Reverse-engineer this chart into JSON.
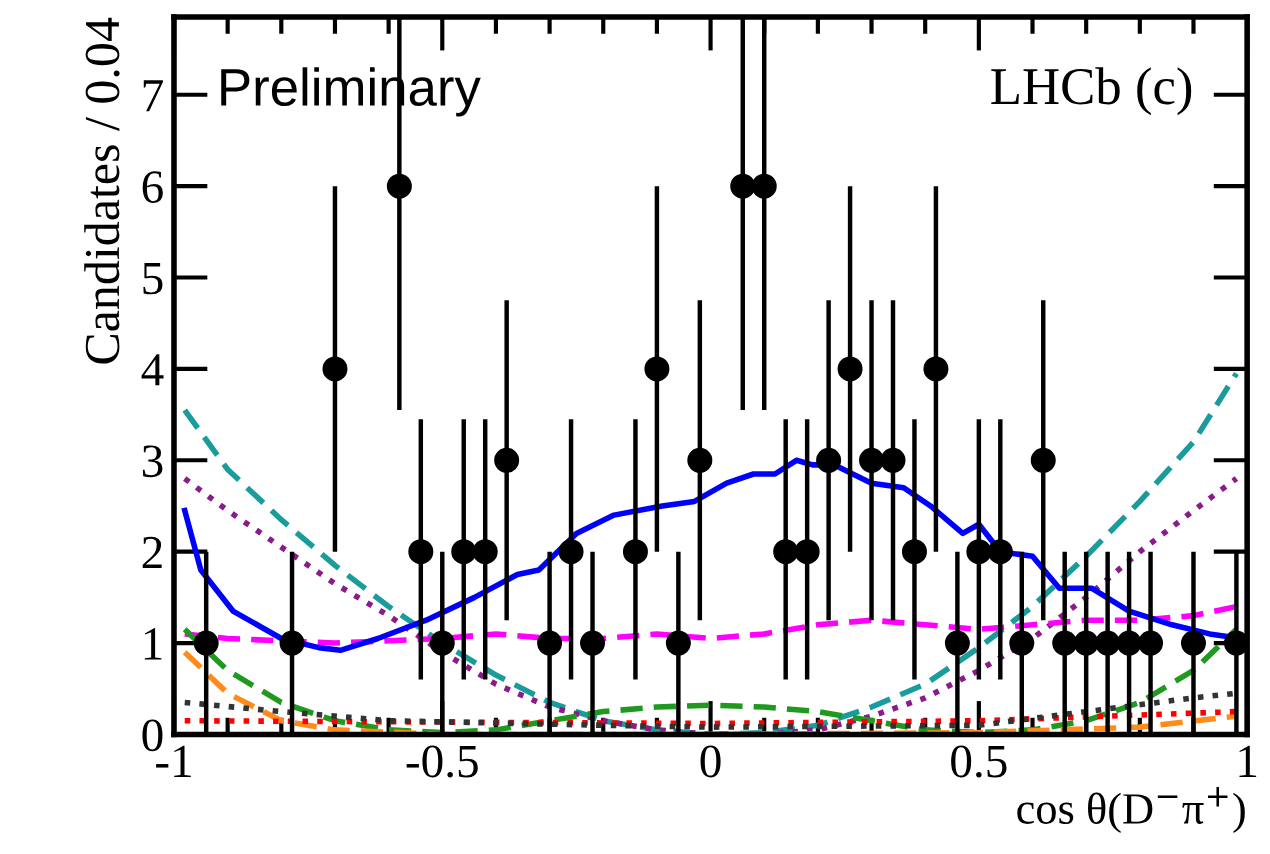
{
  "chart_data": {
    "type": "scatter",
    "xlabel": "cos θ(D$^{−}$π$^{+}$)",
    "ylabel": "Candidates / 0.04",
    "xlim": [
      -1,
      1
    ],
    "xticks": [
      -1,
      -0.5,
      0,
      0.5,
      1
    ],
    "ylim": [
      0,
      7.85
    ],
    "yticks": [
      0,
      1,
      2,
      3,
      4,
      5,
      6,
      7
    ],
    "grid": false,
    "legend": false,
    "annotations": [
      "Preliminary",
      "LHCb (c)"
    ],
    "series": [
      {
        "type": "line",
        "color": "#1a9c9c",
        "line_style": "dashed",
        "x": [
          -0.98,
          -0.9,
          -0.8,
          -0.7,
          -0.6,
          -0.5,
          -0.4,
          -0.3,
          -0.2,
          -0.1,
          0,
          0.1,
          0.2,
          0.3,
          0.4,
          0.5,
          0.6,
          0.7,
          0.8,
          0.9,
          0.98
        ],
        "values": [
          3.55,
          2.9,
          2.35,
          1.85,
          1.4,
          1.0,
          0.65,
          0.35,
          0.15,
          0.05,
          0.0,
          0.02,
          0.1,
          0.3,
          0.55,
          0.95,
          1.4,
          1.95,
          2.55,
          3.2,
          3.95
        ]
      },
      {
        "type": "line",
        "color": "#8b1a8b",
        "line_style": "dotted",
        "x": [
          -0.98,
          -0.9,
          -0.8,
          -0.7,
          -0.6,
          -0.5,
          -0.4,
          -0.3,
          -0.2,
          -0.1,
          0,
          0.1,
          0.2,
          0.3,
          0.4,
          0.5,
          0.6,
          0.7,
          0.8,
          0.9,
          0.98
        ],
        "values": [
          2.8,
          2.45,
          2.05,
          1.65,
          1.3,
          0.9,
          0.55,
          0.3,
          0.15,
          0.05,
          0,
          0,
          0.05,
          0.2,
          0.4,
          0.7,
          1.05,
          1.5,
          2.0,
          2.45,
          2.8
        ]
      },
      {
        "type": "line",
        "color": "#ff00ff",
        "line_style": "dashed",
        "x": [
          -0.98,
          -0.9,
          -0.7,
          -0.5,
          -0.4,
          -0.3,
          -0.2,
          -0.1,
          0,
          0.1,
          0.2,
          0.3,
          0.4,
          0.5,
          0.6,
          0.7,
          0.8,
          0.9,
          0.98
        ],
        "values": [
          1.1,
          1.05,
          1.0,
          1.05,
          1.1,
          1.05,
          1.05,
          1.1,
          1.05,
          1.1,
          1.2,
          1.25,
          1.2,
          1.15,
          1.2,
          1.25,
          1.25,
          1.3,
          1.4
        ]
      },
      {
        "type": "line",
        "color": "#1f9a1f",
        "line_style": "dashed",
        "x": [
          -0.98,
          -0.9,
          -0.8,
          -0.7,
          -0.6,
          -0.5,
          -0.4,
          -0.3,
          -0.2,
          -0.1,
          0,
          0.1,
          0.2,
          0.3,
          0.4,
          0.5,
          0.6,
          0.7,
          0.8,
          0.9,
          0.98
        ],
        "values": [
          1.15,
          0.7,
          0.35,
          0.15,
          0.05,
          0.02,
          0.05,
          0.15,
          0.25,
          0.3,
          0.32,
          0.3,
          0.25,
          0.15,
          0.05,
          0.02,
          0.05,
          0.15,
          0.35,
          0.7,
          1.15
        ]
      },
      {
        "type": "line",
        "color": "#ff8c1a",
        "line_style": "dashed",
        "x": [
          -0.98,
          -0.9,
          -0.8,
          -0.7,
          -0.5,
          0,
          0.5,
          0.8,
          0.98
        ],
        "values": [
          0.9,
          0.45,
          0.15,
          0.05,
          0.0,
          0,
          0.02,
          0.08,
          0.2
        ]
      },
      {
        "type": "line",
        "color": "#ff0000",
        "line_style": "dotted",
        "x": [
          -0.98,
          0,
          0.5,
          0.98
        ],
        "values": [
          0.15,
          0.12,
          0.15,
          0.25
        ]
      },
      {
        "type": "line",
        "color": "#333333",
        "line_style": "dotted",
        "x": [
          -0.98,
          -0.8,
          -0.6,
          -0.2,
          0,
          0.5,
          0.7,
          0.9,
          0.98
        ],
        "values": [
          0.35,
          0.25,
          0.15,
          0.1,
          0.08,
          0.1,
          0.25,
          0.4,
          0.45
        ]
      },
      {
        "type": "line",
        "color": "#0000ff",
        "line_style": "solid",
        "x": [
          -0.98,
          -0.95,
          -0.89,
          -0.8,
          -0.73,
          -0.69,
          -0.62,
          -0.53,
          -0.44,
          -0.36,
          -0.32,
          -0.25,
          -0.18,
          -0.09,
          -0.03,
          0.03,
          0.08,
          0.12,
          0.16,
          0.19,
          0.23,
          0.3,
          0.36,
          0.41,
          0.47,
          0.5,
          0.54,
          0.6,
          0.65,
          0.71,
          0.78,
          0.86,
          0.93,
          0.99
        ],
        "values": [
          2.45,
          1.8,
          1.35,
          1.05,
          0.95,
          0.92,
          1.05,
          1.25,
          1.5,
          1.75,
          1.8,
          2.2,
          2.4,
          2.5,
          2.55,
          2.75,
          2.85,
          2.85,
          3.0,
          2.95,
          2.95,
          2.75,
          2.7,
          2.5,
          2.2,
          2.3,
          2.0,
          1.95,
          1.6,
          1.6,
          1.35,
          1.2,
          1.1,
          1.05
        ]
      },
      {
        "color": "#000000",
        "marker": "circle",
        "x": [
          -0.94,
          -0.78,
          -0.7,
          -0.58,
          -0.54,
          -0.5,
          -0.46,
          -0.42,
          -0.38,
          -0.3,
          -0.26,
          -0.22,
          -0.14,
          -0.1,
          -0.06,
          -0.02,
          0.06,
          0.1,
          0.14,
          0.18,
          0.22,
          0.26,
          0.3,
          0.34,
          0.38,
          0.42,
          0.46,
          0.5,
          0.54,
          0.58,
          0.62,
          0.66,
          0.7,
          0.74,
          0.78,
          0.82,
          0.9,
          0.98
        ],
        "values": [
          1,
          1,
          4,
          6,
          2,
          1,
          2,
          2,
          3,
          1,
          2,
          1,
          2,
          4,
          1,
          3,
          6,
          6,
          2,
          2,
          3,
          4,
          3,
          3,
          2,
          4,
          1,
          2,
          2,
          1,
          3,
          1,
          1,
          1,
          1,
          1,
          1,
          1
        ],
        "errors": [
          [
            0,
            2
          ],
          [
            0,
            2
          ],
          [
            2,
            6
          ],
          [
            3.55,
            7.85
          ],
          [
            0.6,
            3.45
          ],
          [
            0,
            2
          ],
          [
            0.6,
            3.45
          ],
          [
            0.6,
            3.45
          ],
          [
            1.25,
            4.75
          ],
          [
            0,
            2
          ],
          [
            0.6,
            3.45
          ],
          [
            0,
            2
          ],
          [
            0.6,
            3.45
          ],
          [
            2,
            6
          ],
          [
            0,
            2
          ],
          [
            1.25,
            4.75
          ],
          [
            3.55,
            7.85
          ],
          [
            3.55,
            7.85
          ],
          [
            0.6,
            3.45
          ],
          [
            0.6,
            3.45
          ],
          [
            1.25,
            4.75
          ],
          [
            2,
            6
          ],
          [
            1.25,
            4.75
          ],
          [
            1.25,
            4.75
          ],
          [
            0.6,
            3.45
          ],
          [
            2,
            6
          ],
          [
            0,
            2
          ],
          [
            0.6,
            3.45
          ],
          [
            0.6,
            3.45
          ],
          [
            0,
            2
          ],
          [
            1.25,
            4.75
          ],
          [
            0,
            2
          ],
          [
            0,
            2
          ],
          [
            0,
            2
          ],
          [
            0,
            2
          ],
          [
            0,
            2
          ],
          [
            0,
            2
          ],
          [
            0,
            2
          ]
        ]
      }
    ]
  }
}
